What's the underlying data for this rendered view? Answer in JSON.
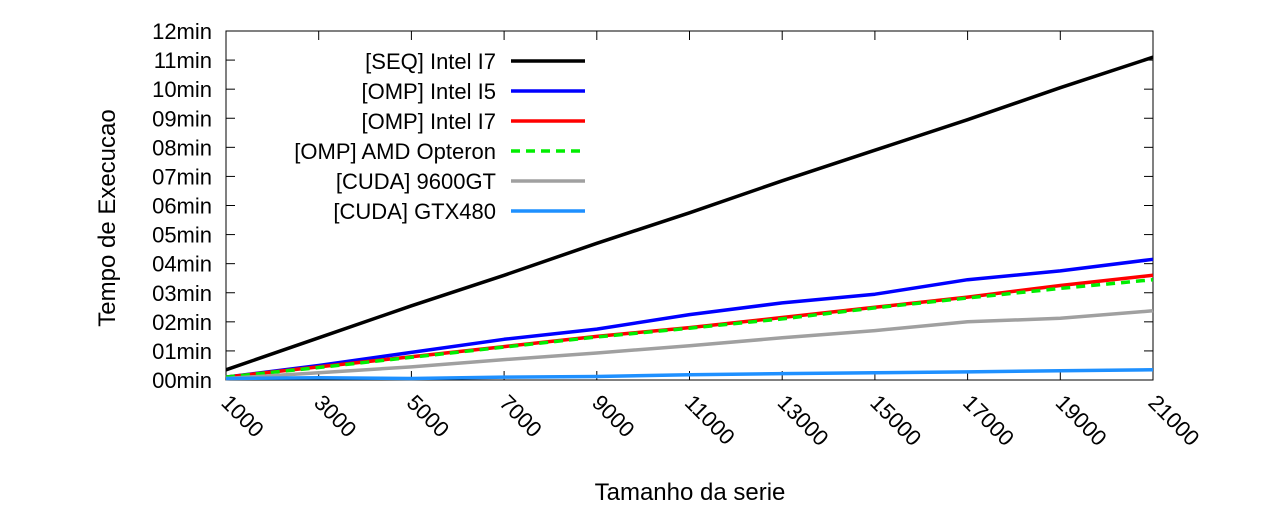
{
  "chart_data": {
    "type": "line",
    "xlabel": "Tamanho da serie",
    "ylabel": "Tempo de Execucao",
    "xlim": [
      1000,
      21000
    ],
    "ylim": [
      0,
      12
    ],
    "x_ticks": [
      1000,
      3000,
      5000,
      7000,
      9000,
      11000,
      13000,
      15000,
      17000,
      19000,
      21000
    ],
    "x_tick_labels": [
      "1000",
      "3000",
      "5000",
      "7000",
      "9000",
      "11000",
      "13000",
      "15000",
      "17000",
      "19000",
      "21000"
    ],
    "y_ticks": [
      0,
      1,
      2,
      3,
      4,
      5,
      6,
      7,
      8,
      9,
      10,
      11,
      12
    ],
    "y_tick_labels": [
      "00min",
      "01min",
      "02min",
      "03min",
      "04min",
      "05min",
      "06min",
      "07min",
      "08min",
      "09min",
      "10min",
      "11min",
      "12min"
    ],
    "grid": false,
    "legend_position": "top-left",
    "x": [
      1000,
      3000,
      5000,
      7000,
      9000,
      11000,
      13000,
      15000,
      17000,
      19000,
      21000
    ],
    "series": [
      {
        "name": "[SEQ] Intel I7",
        "color": "#000000",
        "dashed": false,
        "values": [
          0.35,
          1.45,
          2.55,
          3.6,
          4.7,
          5.75,
          6.85,
          7.9,
          8.95,
          10.05,
          11.1
        ]
      },
      {
        "name": "[OMP] Intel I5",
        "color": "#0000ff",
        "dashed": false,
        "values": [
          0.1,
          0.5,
          0.95,
          1.4,
          1.75,
          2.25,
          2.65,
          2.95,
          3.45,
          3.75,
          4.15
        ]
      },
      {
        "name": "[OMP] Intel I7",
        "color": "#ff0000",
        "dashed": false,
        "values": [
          0.1,
          0.45,
          0.8,
          1.15,
          1.5,
          1.8,
          2.15,
          2.5,
          2.85,
          3.25,
          3.6
        ]
      },
      {
        "name": "[OMP] AMD Opteron",
        "color": "#00ee00",
        "dashed": true,
        "values": [
          0.1,
          0.43,
          0.78,
          1.13,
          1.48,
          1.78,
          2.1,
          2.48,
          2.82,
          3.15,
          3.45
        ]
      },
      {
        "name": "[CUDA] 9600GT",
        "color": "#a0a0a0",
        "dashed": false,
        "values": [
          0.05,
          0.25,
          0.45,
          0.7,
          0.93,
          1.18,
          1.45,
          1.7,
          2.0,
          2.12,
          2.38
        ]
      },
      {
        "name": "[CUDA] GTX480",
        "color": "#1e90ff",
        "dashed": false,
        "values": [
          0.05,
          0.08,
          0.05,
          0.1,
          0.12,
          0.18,
          0.22,
          0.25,
          0.28,
          0.32,
          0.35
        ]
      }
    ]
  }
}
